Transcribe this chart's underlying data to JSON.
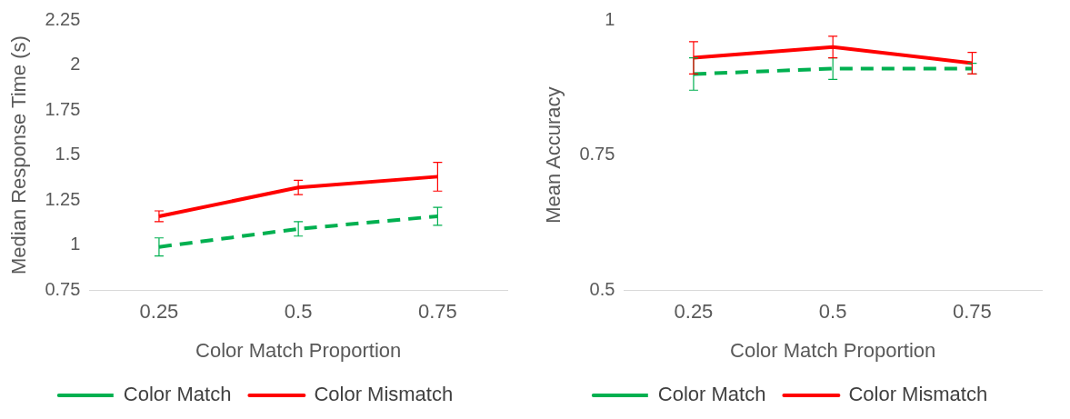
{
  "chart_data": [
    {
      "type": "line",
      "xlabel": "Color Match Proportion",
      "ylabel": "Median Response Time (s)",
      "categories": [
        "0.25",
        "0.5",
        "0.75"
      ],
      "ylim": [
        0.75,
        2.25
      ],
      "yticks": [
        0.75,
        1,
        1.25,
        1.5,
        1.75,
        2,
        2.25
      ],
      "grid": false,
      "legend": "bottom",
      "series": [
        {
          "name": "Color Match",
          "color": "#00b050",
          "line_style": "dashed",
          "values": [
            0.99,
            1.09,
            1.16
          ],
          "errors": [
            0.05,
            0.04,
            0.05
          ]
        },
        {
          "name": "Color Mismatch",
          "color": "#ff0000",
          "line_style": "solid",
          "values": [
            1.16,
            1.32,
            1.38
          ],
          "errors": [
            0.03,
            0.04,
            0.08
          ]
        }
      ]
    },
    {
      "type": "line",
      "xlabel": "Color Match Proportion",
      "ylabel": "Mean Accuracy",
      "categories": [
        "0.25",
        "0.5",
        "0.75"
      ],
      "ylim": [
        0.5,
        1
      ],
      "yticks": [
        0.5,
        0.75,
        1
      ],
      "grid": false,
      "legend": "bottom",
      "series": [
        {
          "name": "Color Match",
          "color": "#00b050",
          "line_style": "dashed",
          "values": [
            0.9,
            0.91,
            0.91
          ],
          "errors": [
            0.03,
            0.02,
            0.01
          ]
        },
        {
          "name": "Color Mismatch",
          "color": "#ff0000",
          "line_style": "solid",
          "values": [
            0.93,
            0.95,
            0.92
          ],
          "errors": [
            0.03,
            0.02,
            0.02
          ]
        }
      ]
    }
  ]
}
